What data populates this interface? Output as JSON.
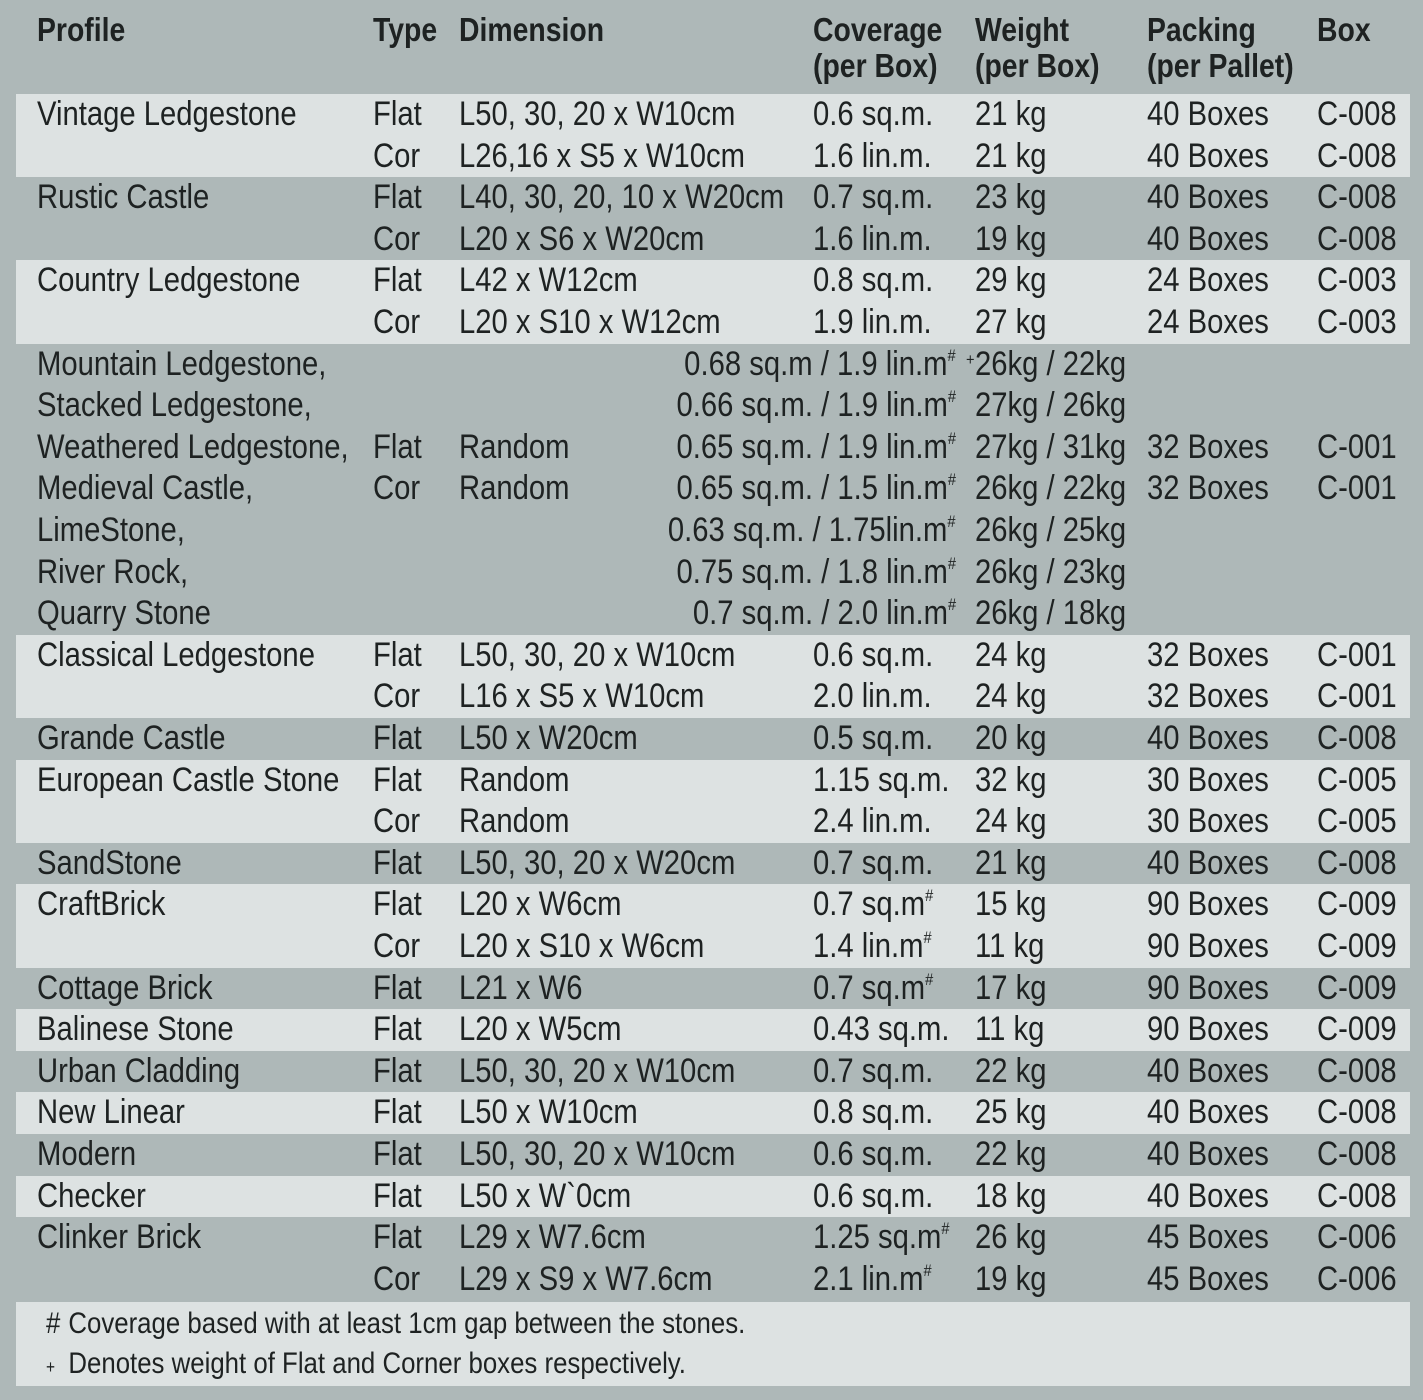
{
  "headers": {
    "profile": "Profile",
    "type": "Type",
    "dimension": "Dimension",
    "coverage_1": "Coverage",
    "coverage_2": "(per Box)",
    "weight_1": "Weight",
    "weight_2": "(per Box)",
    "packing_1": "Packing",
    "packing_2": "(per Pallet)",
    "box": "Box"
  },
  "bands": [
    {
      "shade": "light",
      "rows": 2
    },
    {
      "shade": "dark",
      "rows": 2
    },
    {
      "shade": "light",
      "rows": 2
    },
    {
      "shade": "dark",
      "rows": 7
    },
    {
      "shade": "light",
      "rows": 2
    },
    {
      "shade": "dark",
      "rows": 1
    },
    {
      "shade": "light",
      "rows": 2
    },
    {
      "shade": "dark",
      "rows": 1
    },
    {
      "shade": "light",
      "rows": 2
    },
    {
      "shade": "dark",
      "rows": 1
    },
    {
      "shade": "light",
      "rows": 1
    },
    {
      "shade": "dark",
      "rows": 1
    },
    {
      "shade": "light",
      "rows": 1
    },
    {
      "shade": "dark",
      "rows": 1
    },
    {
      "shade": "light",
      "rows": 1
    },
    {
      "shade": "dark",
      "rows": 2
    }
  ],
  "rows": [
    {
      "profile": "Vintage Ledgestone",
      "type": "Flat",
      "dimension": "L50, 30, 20 x W10cm",
      "coverage": "0.6 sq.m.",
      "weight": "21 kg",
      "packing": "40 Boxes",
      "box": "C-008"
    },
    {
      "profile": "",
      "type": "Cor",
      "dimension": "L26,16 x S5 x W10cm",
      "coverage": "1.6 lin.m.",
      "weight": "21 kg",
      "packing": "40 Boxes",
      "box": "C-008"
    },
    {
      "profile": "Rustic Castle",
      "type": "Flat",
      "dimension": "L40, 30, 20, 10 x W20cm",
      "coverage": "0.7 sq.m.",
      "weight": "23 kg",
      "packing": "40 Boxes",
      "box": "C-008"
    },
    {
      "profile": "",
      "type": "Cor",
      "dimension": "L20 x S6 x W20cm",
      "coverage": "1.6 lin.m.",
      "weight": "19 kg",
      "packing": "40 Boxes",
      "box": "C-008"
    },
    {
      "profile": "Country Ledgestone",
      "type": "Flat",
      "dimension": "L42 x W12cm",
      "coverage": "0.8 sq.m.",
      "weight": "29 kg",
      "packing": "24 Boxes",
      "box": "C-003"
    },
    {
      "profile": "",
      "type": "Cor",
      "dimension": "L20 x S10 x W12cm",
      "coverage": "1.9 lin.m.",
      "weight": "27 kg",
      "packing": "24 Boxes",
      "box": "C-003"
    },
    {
      "profile": "Mountain Ledgestone,",
      "type": "",
      "dimension": "",
      "wide_coverage": "0.68 sq.m / 1.9 lin.m",
      "hash": "#",
      "plus": "+",
      "weight": "26kg / 22kg",
      "packing": "",
      "box": ""
    },
    {
      "profile": "Stacked Ledgestone,",
      "type": "",
      "dimension": "",
      "wide_coverage": "0.66 sq.m. / 1.9 lin.m",
      "hash": "#",
      "weight": "27kg / 26kg",
      "packing": "",
      "box": ""
    },
    {
      "profile": "Weathered Ledgestone,",
      "type": "Flat",
      "dimension": "Random",
      "wide_coverage": "0.65 sq.m. / 1.9 lin.m",
      "hash": "#",
      "weight": "27kg / 31kg",
      "packing": "32 Boxes",
      "box": "C-001"
    },
    {
      "profile": "Medieval Castle,",
      "type": "Cor",
      "dimension": "Random",
      "wide_coverage": "0.65 sq.m. / 1.5 lin.m",
      "hash": "#",
      "weight": "26kg / 22kg",
      "packing": "32 Boxes",
      "box": "C-001"
    },
    {
      "profile": "LimeStone,",
      "type": "",
      "dimension": "",
      "wide_coverage": "0.63 sq.m. / 1.75lin.m",
      "hash": "#",
      "weight": "26kg / 25kg",
      "packing": "",
      "box": ""
    },
    {
      "profile": "River Rock,",
      "type": "",
      "dimension": "",
      "wide_coverage": "0.75 sq.m. / 1.8 lin.m",
      "hash": "#",
      "weight": "26kg / 23kg",
      "packing": "",
      "box": ""
    },
    {
      "profile": "Quarry Stone",
      "type": "",
      "dimension": "",
      "wide_coverage": "0.7 sq.m. / 2.0 lin.m",
      "hash": "#",
      "weight": "26kg / 18kg",
      "packing": "",
      "box": ""
    },
    {
      "profile": "Classical Ledgestone",
      "type": "Flat",
      "dimension": "L50, 30, 20 x W10cm",
      "coverage": "0.6 sq.m.",
      "weight": "24 kg",
      "packing": "32 Boxes",
      "box": "C-001"
    },
    {
      "profile": "",
      "type": "Cor",
      "dimension": "L16 x S5 x W10cm",
      "coverage": "2.0 lin.m.",
      "weight": "24 kg",
      "packing": "32 Boxes",
      "box": "C-001"
    },
    {
      "profile": "Grande Castle",
      "type": "Flat",
      "dimension": "L50 x W20cm",
      "coverage": "0.5 sq.m.",
      "weight": "20 kg",
      "packing": "40 Boxes",
      "box": "C-008"
    },
    {
      "profile": "European Castle Stone",
      "type": "Flat",
      "dimension": "Random",
      "coverage": "1.15 sq.m.",
      "weight": "32 kg",
      "packing": "30 Boxes",
      "box": "C-005"
    },
    {
      "profile": "",
      "type": "Cor",
      "dimension": "Random",
      "coverage": "2.4 lin.m.",
      "weight": "24 kg",
      "packing": "30 Boxes",
      "box": "C-005"
    },
    {
      "profile": "SandStone",
      "type": "Flat",
      "dimension": "L50, 30, 20 x W20cm",
      "coverage": "0.7 sq.m.",
      "weight": "21 kg",
      "packing": "40 Boxes",
      "box": "C-008"
    },
    {
      "profile": "CraftBrick",
      "type": "Flat",
      "dimension": "L20 x W6cm",
      "coverage": "0.7 sq.m",
      "hash": "#",
      "weight": "15 kg",
      "packing": "90 Boxes",
      "box": "C-009"
    },
    {
      "profile": "",
      "type": "Cor",
      "dimension": "L20 x S10 x W6cm",
      "coverage": "1.4 lin.m",
      "hash": "#",
      "weight": "11 kg",
      "packing": "90 Boxes",
      "box": "C-009"
    },
    {
      "profile": "Cottage Brick",
      "type": "Flat",
      "dimension": "L21 x W6",
      "coverage": "0.7 sq.m",
      "hash": "#",
      "weight": "17 kg",
      "packing": "90 Boxes",
      "box": "C-009"
    },
    {
      "profile": "Balinese Stone",
      "type": "Flat",
      "dimension": "L20 x W5cm",
      "coverage": "0.43 sq.m.",
      "weight": "11 kg",
      "packing": "90 Boxes",
      "box": "C-009"
    },
    {
      "profile": "Urban Cladding",
      "type": "Flat",
      "dimension": "L50, 30, 20 x W10cm",
      "coverage": "0.7 sq.m.",
      "weight": "22 kg",
      "packing": "40 Boxes",
      "box": "C-008"
    },
    {
      "profile": "New Linear",
      "type": "Flat",
      "dimension": "L50 x W10cm",
      "coverage": "0.8 sq.m.",
      "weight": "25 kg",
      "packing": "40 Boxes",
      "box": "C-008"
    },
    {
      "profile": "Modern",
      "type": "Flat",
      "dimension": "L50, 30, 20 x W10cm",
      "coverage": "0.6 sq.m.",
      "weight": "22 kg",
      "packing": "40 Boxes",
      "box": "C-008"
    },
    {
      "profile": "Checker",
      "type": "Flat",
      "dimension": "L50 x W`0cm",
      "coverage": "0.6 sq.m.",
      "weight": "18 kg",
      "packing": "40 Boxes",
      "box": "C-008"
    },
    {
      "profile": "Clinker Brick",
      "type": "Flat",
      "dimension": "L29 x W7.6cm",
      "coverage": "1.25 sq.m",
      "hash": "#",
      "weight": "26 kg",
      "packing": "45 Boxes",
      "box": "C-006"
    },
    {
      "profile": "",
      "type": "Cor",
      "dimension": "L29 x S9 x W7.6cm",
      "coverage": "2.1 lin.m",
      "hash": "#",
      "weight": "19 kg",
      "packing": "45 Boxes",
      "box": "C-006"
    }
  ],
  "notes": [
    {
      "symbol": "#",
      "text": "Coverage based with at least 1cm gap between the stones."
    },
    {
      "symbol": "+",
      "text": "Denotes weight of Flat and Corner boxes respectively."
    }
  ],
  "colors": {
    "background": "#aeb8b8",
    "band_light": "#dde2e2",
    "text": "#1e2222"
  }
}
